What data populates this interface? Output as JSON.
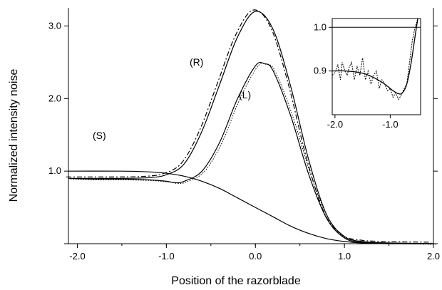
{
  "chart_data": {
    "type": "line",
    "title": "",
    "xlabel": "Position of the razorblade",
    "ylabel": "Normalized intensity noise",
    "xlim": [
      -2.1,
      2.0
    ],
    "ylim": [
      0,
      3.25
    ],
    "x_ticks": [
      "-2.0",
      "-1.0",
      "0.0",
      "1.0",
      "2.0"
    ],
    "y_ticks": [
      "1.0",
      "2.0",
      "3.0"
    ],
    "grid": false,
    "legend": "none",
    "annotations": [
      "(R)",
      "(L)",
      "(S)"
    ],
    "series": [
      {
        "name": "(R)",
        "style": "measured (dash-dot) + fit (solid)",
        "x": [
          -2.1,
          -1.8,
          -1.5,
          -1.2,
          -1.0,
          -0.8,
          -0.6,
          -0.4,
          -0.2,
          0.0,
          0.2,
          0.4,
          0.6,
          0.8,
          1.0,
          1.2,
          1.5,
          2.0
        ],
        "y": [
          0.9,
          0.9,
          0.9,
          0.91,
          0.95,
          1.1,
          1.55,
          2.2,
          2.85,
          3.2,
          2.95,
          2.15,
          1.15,
          0.4,
          0.1,
          0.03,
          0.01,
          0.0
        ]
      },
      {
        "name": "(L)",
        "style": "measured (dotted) + fit (solid)",
        "x": [
          -2.1,
          -1.8,
          -1.5,
          -1.2,
          -1.0,
          -0.9,
          -0.8,
          -0.6,
          -0.4,
          -0.2,
          0.0,
          0.1,
          0.2,
          0.4,
          0.6,
          0.8,
          1.0,
          1.2,
          1.5,
          2.0
        ],
        "y": [
          0.9,
          0.89,
          0.89,
          0.88,
          0.86,
          0.84,
          0.86,
          1.0,
          1.4,
          2.0,
          2.45,
          2.48,
          2.38,
          1.75,
          0.95,
          0.35,
          0.08,
          0.02,
          0.01,
          0.0
        ]
      },
      {
        "name": "(S)",
        "style": "solid",
        "x": [
          -2.1,
          -1.5,
          -1.2,
          -1.0,
          -0.8,
          -0.6,
          -0.4,
          -0.2,
          0.0,
          0.2,
          0.4,
          0.6,
          0.8,
          1.0,
          1.2,
          1.5,
          2.0
        ],
        "y": [
          1.0,
          1.0,
          0.99,
          0.97,
          0.93,
          0.86,
          0.76,
          0.63,
          0.5,
          0.37,
          0.24,
          0.14,
          0.07,
          0.03,
          0.01,
          0.0,
          0.0
        ]
      }
    ],
    "inset": {
      "x_ticks": [
        "-2.0",
        "-1.0"
      ],
      "y_ticks": [
        "0.9",
        "1.0"
      ],
      "xlim": [
        -2.05,
        -0.45
      ],
      "ylim": [
        0.8,
        1.02
      ],
      "reference_y": 1.0,
      "series": [
        {
          "style": "fit (solid)",
          "x": [
            -2.05,
            -1.8,
            -1.5,
            -1.3,
            -1.1,
            -0.95,
            -0.85,
            -0.78,
            -0.7,
            -0.62,
            -0.55,
            -0.5
          ],
          "y": [
            0.9,
            0.9,
            0.895,
            0.885,
            0.87,
            0.855,
            0.848,
            0.85,
            0.87,
            0.92,
            0.98,
            1.02
          ]
        },
        {
          "style": "measured (dotted)",
          "x": [
            -2.05,
            -1.98,
            -1.95,
            -1.9,
            -1.87,
            -1.82,
            -1.78,
            -1.74,
            -1.7,
            -1.65,
            -1.6,
            -1.55,
            -1.5,
            -1.45,
            -1.4,
            -1.35,
            -1.3,
            -1.25,
            -1.2,
            -1.15,
            -1.1,
            -1.05,
            -1.0,
            -0.95,
            -0.9,
            -0.85,
            -0.8,
            -0.75,
            -0.7,
            -0.65,
            -0.6,
            -0.55,
            -0.5
          ],
          "y": [
            0.89,
            0.9,
            0.915,
            0.88,
            0.92,
            0.9,
            0.89,
            0.91,
            0.92,
            0.88,
            0.91,
            0.89,
            0.93,
            0.88,
            0.9,
            0.87,
            0.89,
            0.9,
            0.86,
            0.88,
            0.87,
            0.855,
            0.86,
            0.84,
            0.85,
            0.835,
            0.845,
            0.86,
            0.87,
            0.92,
            0.97,
            1.0,
            1.02
          ]
        }
      ]
    }
  }
}
